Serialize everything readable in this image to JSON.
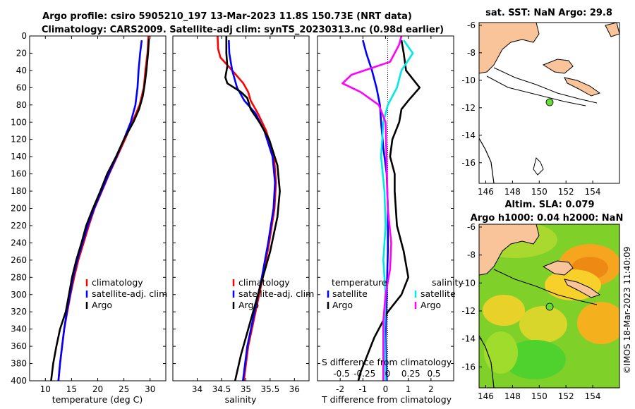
{
  "figure": {
    "title_line1": "Argo profile: csiro 5905210_197 13-Mar-2023 11.8S 150.73E (NRT data)",
    "title_line2": "Climatology: CARS2009. Satellite-adj clim: synTS_20230313.nc (0.98d earlier)",
    "credit": "©IMOS 18-Mar-2023 11:40:09"
  },
  "colors": {
    "climatology": "#ff0000",
    "satellite": "#0000ff",
    "argo": "#000000",
    "salinity_sat": "#00e8e8",
    "salinity_argo": "#ff00ff",
    "land": "#f9c49a",
    "float_marker": "#66dd33"
  },
  "chart_data": [
    {
      "id": "temperature",
      "type": "line",
      "xlabel": "temperature (deg C)",
      "xlim": [
        7,
        33
      ],
      "ylim": [
        0,
        400
      ],
      "xticks": [
        10,
        15,
        20,
        25,
        30
      ],
      "yticks": [
        0,
        20,
        40,
        60,
        80,
        100,
        120,
        140,
        160,
        180,
        200,
        220,
        240,
        260,
        280,
        300,
        320,
        340,
        360,
        380,
        400
      ],
      "legend": [
        "climatology",
        "satellite-adj. clim",
        "Argo"
      ],
      "series": [
        {
          "name": "climatology",
          "color": "#ff0000",
          "points": [
            [
              29.7,
              0
            ],
            [
              29.5,
              20
            ],
            [
              29.1,
              40
            ],
            [
              28.8,
              60
            ],
            [
              28.0,
              80
            ],
            [
              26.6,
              100
            ],
            [
              25.2,
              120
            ],
            [
              23.7,
              140
            ],
            [
              22.2,
              160
            ],
            [
              20.8,
              180
            ],
            [
              19.4,
              200
            ],
            [
              18.3,
              220
            ],
            [
              17.3,
              240
            ],
            [
              16.3,
              260
            ],
            [
              15.5,
              280
            ],
            [
              14.8,
              300
            ],
            [
              14.2,
              320
            ],
            [
              13.6,
              340
            ],
            [
              13.2,
              360
            ],
            [
              12.8,
              380
            ],
            [
              12.5,
              400
            ]
          ]
        },
        {
          "name": "satellite-adj. clim",
          "color": "#0000ff",
          "points": [
            [
              28.4,
              5
            ],
            [
              28.1,
              20
            ],
            [
              27.8,
              40
            ],
            [
              27.6,
              60
            ],
            [
              27.2,
              80
            ],
            [
              26.3,
              100
            ],
            [
              25.0,
              120
            ],
            [
              23.6,
              140
            ],
            [
              22.1,
              160
            ],
            [
              20.7,
              180
            ],
            [
              19.3,
              200
            ],
            [
              18.1,
              220
            ],
            [
              17.1,
              240
            ],
            [
              16.1,
              260
            ],
            [
              15.3,
              280
            ],
            [
              14.7,
              300
            ],
            [
              14.1,
              320
            ],
            [
              13.6,
              340
            ],
            [
              13.2,
              360
            ],
            [
              12.8,
              380
            ],
            [
              12.5,
              400
            ]
          ]
        },
        {
          "name": "Argo",
          "color": "#000000",
          "points": [
            [
              29.8,
              3
            ],
            [
              29.6,
              20
            ],
            [
              29.3,
              40
            ],
            [
              29.0,
              55
            ],
            [
              28.6,
              70
            ],
            [
              27.9,
              85
            ],
            [
              26.8,
              100
            ],
            [
              25.0,
              120
            ],
            [
              23.5,
              140
            ],
            [
              21.8,
              160
            ],
            [
              20.5,
              180
            ],
            [
              19.1,
              200
            ],
            [
              17.8,
              220
            ],
            [
              16.9,
              240
            ],
            [
              15.9,
              260
            ],
            [
              15.1,
              280
            ],
            [
              14.5,
              300
            ],
            [
              13.9,
              320
            ],
            [
              12.8,
              340
            ],
            [
              12.1,
              360
            ],
            [
              11.5,
              380
            ],
            [
              11.1,
              400
            ]
          ]
        }
      ]
    },
    {
      "id": "salinity",
      "type": "line",
      "xlabel": "salinity",
      "xlim": [
        33.5,
        36.3
      ],
      "ylim": [
        0,
        400
      ],
      "xticks": [
        34,
        34.5,
        35,
        35.5,
        36
      ],
      "legend": [
        "climatology",
        "satellite-adj. clim",
        "Argo"
      ],
      "series": [
        {
          "name": "climatology",
          "color": "#ff0000",
          "points": [
            [
              34.42,
              0
            ],
            [
              34.43,
              15
            ],
            [
              34.48,
              25
            ],
            [
              34.72,
              40
            ],
            [
              34.95,
              55
            ],
            [
              35.05,
              65
            ],
            [
              35.1,
              75
            ],
            [
              35.25,
              90
            ],
            [
              35.42,
              110
            ],
            [
              35.58,
              140
            ],
            [
              35.62,
              170
            ],
            [
              35.59,
              200
            ],
            [
              35.48,
              240
            ],
            [
              35.35,
              280
            ],
            [
              35.2,
              320
            ],
            [
              35.05,
              360
            ],
            [
              34.96,
              400
            ]
          ]
        },
        {
          "name": "satellite-adj. clim",
          "color": "#0000ff",
          "points": [
            [
              34.65,
              5
            ],
            [
              34.66,
              20
            ],
            [
              34.72,
              40
            ],
            [
              34.82,
              60
            ],
            [
              34.97,
              75
            ],
            [
              35.2,
              90
            ],
            [
              35.38,
              110
            ],
            [
              35.55,
              140
            ],
            [
              35.6,
              170
            ],
            [
              35.57,
              200
            ],
            [
              35.46,
              240
            ],
            [
              35.33,
              280
            ],
            [
              35.18,
              320
            ],
            [
              35.03,
              360
            ],
            [
              34.94,
              400
            ]
          ]
        },
        {
          "name": "Argo",
          "color": "#000000",
          "points": [
            [
              34.6,
              0
            ],
            [
              34.6,
              20
            ],
            [
              34.62,
              35
            ],
            [
              34.58,
              48
            ],
            [
              34.62,
              55
            ],
            [
              34.9,
              65
            ],
            [
              35.03,
              72
            ],
            [
              35.1,
              85
            ],
            [
              35.28,
              100
            ],
            [
              35.48,
              120
            ],
            [
              35.65,
              150
            ],
            [
              35.7,
              180
            ],
            [
              35.65,
              210
            ],
            [
              35.5,
              250
            ],
            [
              35.3,
              290
            ],
            [
              35.1,
              330
            ],
            [
              34.9,
              370
            ],
            [
              34.78,
              400
            ]
          ]
        }
      ]
    },
    {
      "id": "difference",
      "type": "line",
      "xlabel": "T difference from climatology",
      "xlabel_top": "S difference from climatology",
      "xlim": [
        -3,
        3
      ],
      "ylim": [
        0,
        400
      ],
      "xticks": [
        -2,
        -1,
        0,
        1,
        2
      ],
      "top_ticks": [
        -0.5,
        -0.25,
        0,
        0.25,
        0.5
      ],
      "legend_left_title": "temperature",
      "legend_right_title": "salinity",
      "legend_left": [
        "satellite",
        "Argo"
      ],
      "legend_right": [
        "satellite",
        "Argo"
      ],
      "series": [
        {
          "name": "temperature satellite",
          "color": "#0000ff",
          "points": [
            [
              -1.0,
              5
            ],
            [
              -0.85,
              20
            ],
            [
              -0.6,
              40
            ],
            [
              -0.4,
              60
            ],
            [
              -0.25,
              80
            ],
            [
              -0.2,
              100
            ],
            [
              -0.1,
              130
            ],
            [
              0.05,
              160
            ],
            [
              0.1,
              200
            ],
            [
              0.1,
              250
            ],
            [
              0.05,
              300
            ],
            [
              0.0,
              350
            ],
            [
              0.05,
              400
            ]
          ]
        },
        {
          "name": "temperature Argo",
          "color": "#000000",
          "points": [
            [
              0.7,
              5
            ],
            [
              0.8,
              20
            ],
            [
              0.9,
              40
            ],
            [
              1.5,
              60
            ],
            [
              1.0,
              75
            ],
            [
              0.7,
              85
            ],
            [
              0.6,
              100
            ],
            [
              0.3,
              120
            ],
            [
              0.2,
              140
            ],
            [
              0.4,
              160
            ],
            [
              0.4,
              180
            ],
            [
              0.5,
              220
            ],
            [
              0.8,
              250
            ],
            [
              1.0,
              280
            ],
            [
              0.7,
              300
            ],
            [
              0.1,
              320
            ],
            [
              -0.5,
              350
            ],
            [
              -0.8,
              370
            ],
            [
              -1.1,
              390
            ],
            [
              -1.2,
              400
            ]
          ]
        },
        {
          "name": "salinity satellite",
          "color": "#00e8e8",
          "points": [
            [
              0.8,
              5
            ],
            [
              1.2,
              20
            ],
            [
              0.7,
              40
            ],
            [
              0.5,
              60
            ],
            [
              0.1,
              80
            ],
            [
              -0.1,
              100
            ],
            [
              -0.2,
              140
            ],
            [
              -0.05,
              180
            ],
            [
              0.0,
              220
            ],
            [
              -0.1,
              260
            ],
            [
              0.0,
              300
            ],
            [
              -0.05,
              340
            ],
            [
              0.0,
              400
            ]
          ]
        },
        {
          "name": "salinity Argo",
          "color": "#ff00ff",
          "points": [
            [
              0.7,
              0
            ],
            [
              0.6,
              10
            ],
            [
              0.2,
              30
            ],
            [
              -1.5,
              45
            ],
            [
              -1.9,
              55
            ],
            [
              -1.1,
              65
            ],
            [
              -0.3,
              80
            ],
            [
              0.0,
              100
            ],
            [
              0.05,
              150
            ],
            [
              0.1,
              200
            ],
            [
              0.25,
              240
            ],
            [
              0.2,
              270
            ],
            [
              0.0,
              300
            ],
            [
              -0.1,
              330
            ],
            [
              -0.1,
              400
            ]
          ]
        }
      ]
    }
  ],
  "maps": {
    "sst": {
      "title": "sat. SST: NaN Argo: 29.8",
      "xticks": [
        "146",
        "148",
        "150",
        "152",
        "154"
      ],
      "yticks": [
        "-6",
        "-8",
        "-10",
        "-12",
        "-14",
        "-16"
      ]
    },
    "sla": {
      "title_line1": "Altim. SLA: 0.079",
      "title_line2": "Argo h1000: 0.04 h2000: NaN",
      "xticks": [
        "146",
        "148",
        "150",
        "152",
        "154"
      ],
      "yticks": [
        "-6",
        "-8",
        "-10",
        "-12",
        "-14",
        "-16"
      ]
    }
  }
}
